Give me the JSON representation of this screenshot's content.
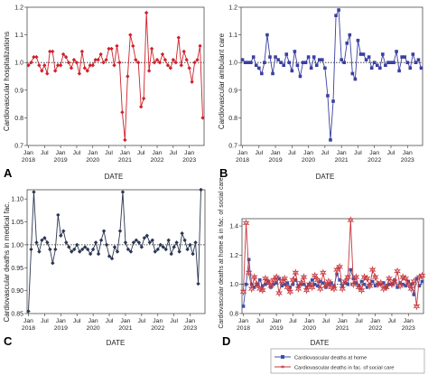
{
  "chart_data": [
    {
      "panel_letter": "A",
      "type": "line",
      "ylabel": "Cardiovascular hospitalizations",
      "xlabel": "DATE",
      "ylim": [
        0.7,
        1.2
      ],
      "yticks": [
        "0.7",
        "0.8",
        "0.9",
        "1.0",
        "1.1",
        "1.2"
      ],
      "xticks": [
        {
          "month": 0,
          "top": "Jan",
          "bottom": "2018"
        },
        {
          "month": 6,
          "top": "Jul",
          "bottom": ""
        },
        {
          "month": 12,
          "top": "Jan",
          "bottom": "2019"
        },
        {
          "month": 18,
          "top": "Jul",
          "bottom": ""
        },
        {
          "month": 24,
          "top": "Jan",
          "bottom": "2020"
        },
        {
          "month": 30,
          "top": "Jul",
          "bottom": ""
        },
        {
          "month": 36,
          "top": "Jan",
          "bottom": "2021"
        },
        {
          "month": 42,
          "top": "Jul",
          "bottom": ""
        },
        {
          "month": 48,
          "top": "Jan",
          "bottom": "2022"
        },
        {
          "month": 54,
          "top": "Jul",
          "bottom": ""
        },
        {
          "month": 60,
          "top": "Jan",
          "bottom": "2023"
        }
      ],
      "reference_line": 1.0,
      "series": [
        {
          "color": "#d0202a",
          "marker": "diamond",
          "values": [
            0.99,
            1.0,
            1.02,
            1.02,
            0.99,
            0.97,
            0.99,
            0.96,
            1.04,
            1.04,
            0.97,
            0.99,
            0.99,
            1.03,
            1.02,
            1.0,
            0.98,
            1.01,
            1.0,
            0.96,
            1.04,
            0.98,
            0.97,
            0.99,
            0.99,
            1.01,
            1.01,
            1.03,
            1.0,
            1.01,
            1.05,
            1.05,
            0.99,
            1.06,
            1.0,
            0.82,
            0.72,
            0.95,
            1.1,
            1.06,
            1.01,
            1.0,
            0.84,
            0.87,
            1.18,
            0.97,
            1.05,
            1.0,
            1.01,
            1.0,
            1.03,
            1.01,
            0.99,
            0.98,
            1.01,
            1.0,
            1.09,
            0.99,
            1.04,
            1.01,
            0.98,
            0.93,
            1.0,
            1.01,
            1.06,
            0.8
          ]
        }
      ]
    },
    {
      "panel_letter": "B",
      "type": "line",
      "ylabel": "Cardiovascular ambulant care",
      "xlabel": "DATE",
      "ylim": [
        0.7,
        1.2
      ],
      "yticks": [
        "0.7",
        "0.8",
        "0.9",
        "1.0",
        "1.1",
        "1.2"
      ],
      "xticks": [
        {
          "month": 0,
          "top": "Jan",
          "bottom": "2018"
        },
        {
          "month": 6,
          "top": "Jul",
          "bottom": ""
        },
        {
          "month": 12,
          "top": "Jan",
          "bottom": "2019"
        },
        {
          "month": 18,
          "top": "Jul",
          "bottom": ""
        },
        {
          "month": 24,
          "top": "Jan",
          "bottom": "2020"
        },
        {
          "month": 30,
          "top": "Jul",
          "bottom": ""
        },
        {
          "month": 36,
          "top": "Jan",
          "bottom": "2021"
        },
        {
          "month": 42,
          "top": "Jul",
          "bottom": ""
        },
        {
          "month": 48,
          "top": "Jan",
          "bottom": "2022"
        },
        {
          "month": 54,
          "top": "Jul",
          "bottom": ""
        },
        {
          "month": 60,
          "top": "Jan",
          "bottom": "2023"
        }
      ],
      "reference_line": 1.0,
      "series": [
        {
          "color": "#3b3fa0",
          "marker": "square",
          "values": [
            1.01,
            1.0,
            1.0,
            1.0,
            1.02,
            0.99,
            0.98,
            0.96,
            1.0,
            1.1,
            1.02,
            0.96,
            1.02,
            1.01,
            1.0,
            0.99,
            1.03,
            1.0,
            0.97,
            1.04,
            0.99,
            0.95,
            1.0,
            1.0,
            1.02,
            0.98,
            1.02,
            0.99,
            1.01,
            1.01,
            0.98,
            0.88,
            0.72,
            0.86,
            1.17,
            1.19,
            1.01,
            1.0,
            1.07,
            1.1,
            0.96,
            0.94,
            1.08,
            1.03,
            1.03,
            1.01,
            1.02,
            0.98,
            1.0,
            0.99,
            0.98,
            1.03,
            0.99,
            1.0,
            1.0,
            1.0,
            1.04,
            0.97,
            1.02,
            1.02,
            1.0,
            0.98,
            1.03,
            1.0,
            1.01,
            0.98
          ]
        }
      ]
    },
    {
      "panel_letter": "C",
      "type": "line",
      "ylabel": "Cardiovascular deaths in medical fac.",
      "xlabel": "DATE",
      "ylim": [
        0.85,
        1.12
      ],
      "yticks": [
        "0.85",
        "0.90",
        "0.95",
        "1.00",
        "1.05",
        "1.10"
      ],
      "xticks": [
        {
          "month": 0,
          "top": "Jan",
          "bottom": "2018"
        },
        {
          "month": 6,
          "top": "Jul",
          "bottom": ""
        },
        {
          "month": 12,
          "top": "Jan",
          "bottom": "2019"
        },
        {
          "month": 18,
          "top": "Jul",
          "bottom": ""
        },
        {
          "month": 24,
          "top": "Jan",
          "bottom": "2020"
        },
        {
          "month": 30,
          "top": "Jul",
          "bottom": ""
        },
        {
          "month": 36,
          "top": "Jan",
          "bottom": "2021"
        },
        {
          "month": 42,
          "top": "Jul",
          "bottom": ""
        },
        {
          "month": 48,
          "top": "Jan",
          "bottom": "2022"
        },
        {
          "month": 54,
          "top": "Jul",
          "bottom": ""
        },
        {
          "month": 60,
          "top": "Jan",
          "bottom": "2023"
        }
      ],
      "reference_line": 1.0,
      "series": [
        {
          "color": "#2a3550",
          "marker": "diamond",
          "values": [
            0.855,
            0.99,
            1.115,
            1.005,
            0.985,
            1.01,
            1.015,
            1.005,
            0.99,
            0.96,
            0.99,
            1.065,
            1.02,
            1.03,
            1.005,
            0.995,
            0.985,
            0.99,
            1.0,
            0.985,
            0.99,
            0.995,
            0.99,
            0.98,
            0.99,
            1.005,
            0.98,
            1.01,
            1.03,
            1.0,
            0.975,
            0.97,
            0.995,
            0.985,
            1.03,
            1.115,
            1.005,
            0.99,
            0.985,
            1.005,
            1.01,
            1.005,
            0.995,
            1.015,
            1.02,
            1.005,
            1.01,
            0.985,
            0.99,
            1.0,
            0.995,
            0.99,
            1.01,
            0.98,
            0.995,
            1.005,
            0.985,
            1.025,
            1.01,
            0.99,
            1.0,
            0.98,
            1.005,
            0.915,
            1.12
          ]
        }
      ]
    },
    {
      "panel_letter": "D",
      "type": "line",
      "ylabel": "Cardiovascular deaths at home & in fac. of social care",
      "xlabel": "DATE",
      "ylim": [
        0.8,
        1.45
      ],
      "yticks": [
        "0.8",
        "1.0",
        "1.2",
        "1.4"
      ],
      "xticks": [
        {
          "month": 0,
          "top": "Jan",
          "bottom": "2018"
        },
        {
          "month": 6,
          "top": "Jul",
          "bottom": ""
        },
        {
          "month": 12,
          "top": "Jan",
          "bottom": "2019"
        },
        {
          "month": 18,
          "top": "Jul",
          "bottom": ""
        },
        {
          "month": 24,
          "top": "Jan",
          "bottom": "2020"
        },
        {
          "month": 30,
          "top": "Jul",
          "bottom": ""
        },
        {
          "month": 36,
          "top": "Jan",
          "bottom": "2021"
        },
        {
          "month": 42,
          "top": "Jul",
          "bottom": ""
        },
        {
          "month": 48,
          "top": "Jan",
          "bottom": "2022"
        },
        {
          "month": 54,
          "top": "Jul",
          "bottom": ""
        },
        {
          "month": 60,
          "top": "Jan",
          "bottom": "2023"
        }
      ],
      "reference_line": 1.0,
      "legend_placement": "bottom",
      "series": [
        {
          "name": "Cardiovascular deaths at home",
          "color": "#3b4fa8",
          "marker": "square",
          "values": [
            0.85,
            1.0,
            1.17,
            1.0,
            0.98,
            1.0,
            1.03,
            0.99,
            1.0,
            1.02,
            0.98,
            1.0,
            1.01,
            1.04,
            0.99,
            1.0,
            1.01,
            0.98,
            1.0,
            1.03,
            0.99,
            1.0,
            1.0,
            0.98,
            1.0,
            1.03,
            1.0,
            0.99,
            1.02,
            1.01,
            0.98,
            1.0,
            1.01,
            0.99,
            1.07,
            1.03,
            0.99,
            1.01,
            1.0,
            1.1,
            1.04,
            1.01,
            0.99,
            1.02,
            1.0,
            0.98,
            1.0,
            1.02,
            0.99,
            1.0,
            1.0,
            1.01,
            0.98,
            1.0,
            1.0,
            1.03,
            0.98,
            1.01,
            1.0,
            0.99,
            1.02,
            1.0,
            0.93,
            1.04,
            0.99,
            1.02
          ]
        },
        {
          "name": "Cardiovascular deaths in fac. of social care",
          "color": "#c8383e",
          "marker": "star",
          "values": [
            0.95,
            1.42,
            1.08,
            0.97,
            1.05,
            1.0,
            0.97,
            0.96,
            1.04,
            1.02,
            0.99,
            1.03,
            1.05,
            0.94,
            1.02,
            1.04,
            0.98,
            0.95,
            1.03,
            1.08,
            0.97,
            1.01,
            1.05,
            0.96,
            1.0,
            0.98,
            1.06,
            1.03,
            0.97,
            1.08,
            0.99,
            1.02,
            0.98,
            0.97,
            1.1,
            1.12,
            0.97,
            1.02,
            1.05,
            1.44,
            1.0,
            1.05,
            0.98,
            0.96,
            1.05,
            1.04,
            0.99,
            1.1,
            1.05,
            1.0,
            1.01,
            0.97,
            0.98,
            1.04,
            1.0,
            1.02,
            1.09,
            0.99,
            1.05,
            1.04,
            1.0,
            0.97,
            1.02,
            0.85,
            1.05,
            1.06
          ]
        }
      ]
    }
  ]
}
